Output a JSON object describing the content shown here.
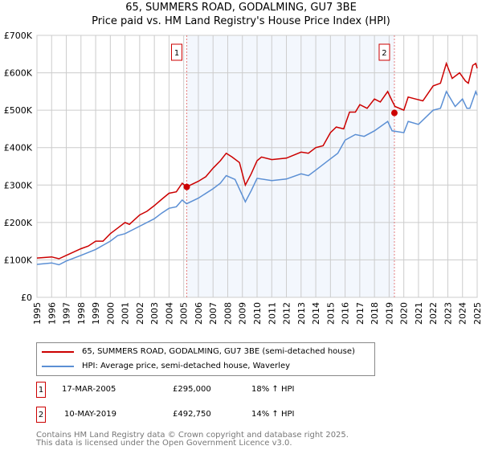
{
  "chart_data": {
    "type": "line",
    "title": "65, SUMMERS ROAD, GODALMING, GU7 3BE",
    "subtitle": "Price paid vs. HM Land Registry's House Price Index (HPI)",
    "xlim": [
      1995,
      2025
    ],
    "ylim": [
      0,
      700000
    ],
    "x_ticks": [
      "1995",
      "1996",
      "1997",
      "1998",
      "1999",
      "2000",
      "2001",
      "2002",
      "2003",
      "2004",
      "2005",
      "2006",
      "2007",
      "2008",
      "2009",
      "2010",
      "2011",
      "2012",
      "2013",
      "2014",
      "2015",
      "2016",
      "2017",
      "2018",
      "2019",
      "2020",
      "2021",
      "2022",
      "2023",
      "2024",
      "2025"
    ],
    "y_ticks": [
      {
        "v": 0,
        "label": "£0"
      },
      {
        "v": 100000,
        "label": "£100K"
      },
      {
        "v": 200000,
        "label": "£200K"
      },
      {
        "v": 300000,
        "label": "£300K"
      },
      {
        "v": 400000,
        "label": "£400K"
      },
      {
        "v": 500000,
        "label": "£500K"
      },
      {
        "v": 600000,
        "label": "£600K"
      },
      {
        "v": 700000,
        "label": "£700K"
      }
    ],
    "grid": true,
    "shaded_range": [
      2005.21,
      2019.36
    ],
    "series": [
      {
        "name": "65, SUMMERS ROAD, GODALMING, GU7 3BE (semi-detached house)",
        "color": "#cc0000",
        "points": [
          [
            1995,
            105
          ],
          [
            1996,
            108
          ],
          [
            1996.5,
            103
          ],
          [
            1997,
            112
          ],
          [
            1998,
            130
          ],
          [
            1998.5,
            137
          ],
          [
            1999,
            150
          ],
          [
            1999.5,
            150
          ],
          [
            2000,
            170
          ],
          [
            2000.5,
            185
          ],
          [
            2001,
            200
          ],
          [
            2001.3,
            195
          ],
          [
            2002,
            220
          ],
          [
            2002.5,
            230
          ],
          [
            2003,
            245
          ],
          [
            2003.5,
            262
          ],
          [
            2004,
            278
          ],
          [
            2004.5,
            282
          ],
          [
            2004.9,
            305
          ],
          [
            2005.2,
            295
          ],
          [
            2006,
            310
          ],
          [
            2006.5,
            322
          ],
          [
            2007,
            345
          ],
          [
            2007.5,
            365
          ],
          [
            2007.9,
            385
          ],
          [
            2008.3,
            375
          ],
          [
            2008.8,
            360
          ],
          [
            2009.2,
            300
          ],
          [
            2009.6,
            330
          ],
          [
            2010,
            365
          ],
          [
            2010.3,
            375
          ],
          [
            2011,
            368
          ],
          [
            2012,
            372
          ],
          [
            2013,
            388
          ],
          [
            2013.5,
            385
          ],
          [
            2014,
            400
          ],
          [
            2014.5,
            405
          ],
          [
            2015,
            440
          ],
          [
            2015.4,
            455
          ],
          [
            2015.9,
            450
          ],
          [
            2016.3,
            495
          ],
          [
            2016.7,
            495
          ],
          [
            2017,
            515
          ],
          [
            2017.5,
            505
          ],
          [
            2018,
            530
          ],
          [
            2018.4,
            522
          ],
          [
            2018.9,
            550
          ],
          [
            2019.2,
            525
          ],
          [
            2019.4,
            510
          ],
          [
            2020,
            500
          ],
          [
            2020.3,
            535
          ],
          [
            2020.8,
            530
          ],
          [
            2021.3,
            525
          ],
          [
            2022,
            565
          ],
          [
            2022.5,
            572
          ],
          [
            2022.9,
            625
          ],
          [
            2023.3,
            585
          ],
          [
            2023.8,
            600
          ],
          [
            2024.2,
            578
          ],
          [
            2024.4,
            572
          ],
          [
            2024.7,
            620
          ],
          [
            2024.9,
            625
          ],
          [
            2025,
            612
          ]
        ]
      },
      {
        "name": "HPI: Average price, semi-detached house, Waverley",
        "color": "#5b8fd4",
        "points": [
          [
            1995,
            88
          ],
          [
            1996,
            92
          ],
          [
            1996.5,
            87
          ],
          [
            1997,
            97
          ],
          [
            1998,
            112
          ],
          [
            1999,
            128
          ],
          [
            2000,
            150
          ],
          [
            2000.5,
            165
          ],
          [
            2001,
            170
          ],
          [
            2002,
            190
          ],
          [
            2003,
            210
          ],
          [
            2003.5,
            225
          ],
          [
            2004,
            238
          ],
          [
            2004.5,
            242
          ],
          [
            2004.9,
            260
          ],
          [
            2005.2,
            250
          ],
          [
            2006,
            265
          ],
          [
            2007,
            290
          ],
          [
            2007.5,
            305
          ],
          [
            2007.9,
            325
          ],
          [
            2008.5,
            315
          ],
          [
            2009.2,
            255
          ],
          [
            2009.6,
            285
          ],
          [
            2010,
            318
          ],
          [
            2011,
            312
          ],
          [
            2012,
            316
          ],
          [
            2013,
            330
          ],
          [
            2013.5,
            325
          ],
          [
            2014,
            340
          ],
          [
            2015,
            370
          ],
          [
            2015.5,
            385
          ],
          [
            2016,
            420
          ],
          [
            2016.7,
            435
          ],
          [
            2017.3,
            430
          ],
          [
            2018,
            445
          ],
          [
            2018.9,
            470
          ],
          [
            2019.2,
            445
          ],
          [
            2020,
            440
          ],
          [
            2020.3,
            470
          ],
          [
            2021,
            462
          ],
          [
            2022,
            500
          ],
          [
            2022.5,
            505
          ],
          [
            2022.9,
            550
          ],
          [
            2023.5,
            510
          ],
          [
            2024,
            530
          ],
          [
            2024.3,
            505
          ],
          [
            2024.5,
            505
          ],
          [
            2024.9,
            550
          ],
          [
            2025,
            540
          ]
        ]
      }
    ],
    "sales": [
      {
        "label": "1",
        "x": 2005.21,
        "price": 295000,
        "date": "17-MAR-2005",
        "price_text": "£295,000",
        "hpi": "18% ↑ HPI"
      },
      {
        "label": "2",
        "x": 2019.36,
        "price": 492750,
        "date": "10-MAY-2019",
        "price_text": "£492,750",
        "hpi": "14% ↑ HPI"
      }
    ]
  },
  "footer": {
    "line1": "Contains HM Land Registry data © Crown copyright and database right 2025.",
    "line2": "This data is licensed under the Open Government Licence v3.0."
  }
}
